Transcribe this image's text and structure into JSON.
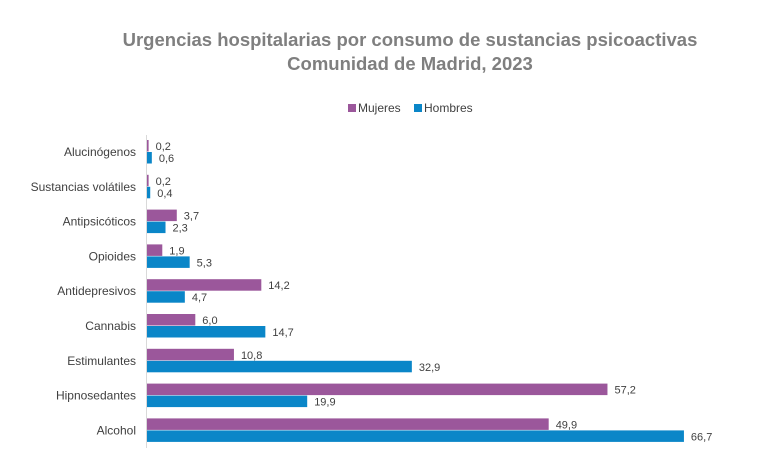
{
  "chart_data": {
    "type": "bar",
    "orientation": "horizontal",
    "title": "Urgencias hospitalarias por consumo de sustancias psicoactivas",
    "subtitle": "Comunidad de Madrid, 2023",
    "categories": [
      "Alucinógenos",
      "Sustancias volátiles",
      "Antipsicóticos",
      "Opioides",
      "Antidepresivos",
      "Cannabis",
      "Estimulantes",
      "Hipnosedantes",
      "Alcohol"
    ],
    "series": [
      {
        "name": "Mujeres",
        "color": "#9B579B",
        "values": [
          0.2,
          0.2,
          3.7,
          1.9,
          14.2,
          6.0,
          10.8,
          57.2,
          49.9
        ],
        "labels": [
          "0,2",
          "0,2",
          "3,7",
          "1,9",
          "14,2",
          "6,0",
          "10,8",
          "57,2",
          "49,9"
        ]
      },
      {
        "name": "Hombres",
        "color": "#0A86C8",
        "values": [
          0.6,
          0.4,
          2.3,
          5.3,
          4.7,
          14.7,
          32.9,
          19.9,
          66.7
        ],
        "labels": [
          "0,6",
          "0,4",
          "2,3",
          "5,3",
          "4,7",
          "14,7",
          "32,9",
          "19,9",
          "66,7"
        ]
      }
    ],
    "legend_position": "top",
    "grid": false,
    "xaxis_visible": false
  }
}
